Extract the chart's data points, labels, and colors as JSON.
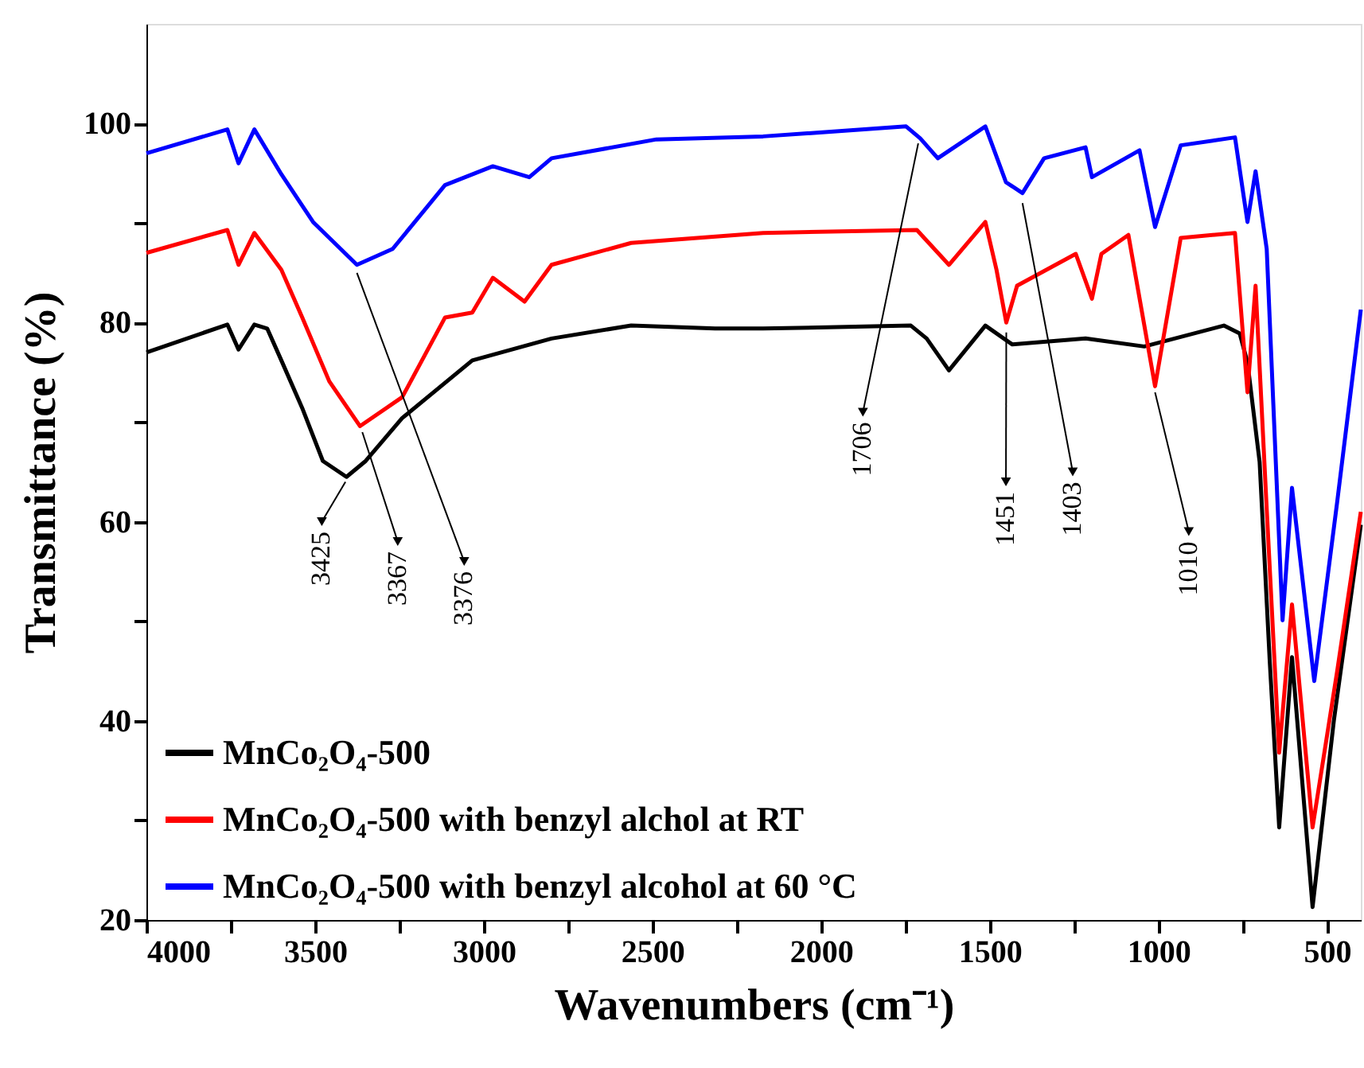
{
  "chart_data": {
    "type": "line",
    "xlabel": "Wavenumbers (cm⁻¹)",
    "ylabel": "Transmittance (%)",
    "xlim": [
      4000,
      400
    ],
    "ylim": [
      20,
      110
    ],
    "xticks": [
      4000,
      {
        "value": 3750,
        "label": null
      },
      3500,
      {
        "value": 3250,
        "label": null
      },
      3000,
      {
        "value": 2750,
        "label": null
      },
      2500,
      {
        "value": 2250,
        "label": null
      },
      2000,
      {
        "value": 1750,
        "label": null
      },
      1500,
      {
        "value": 1250,
        "label": null
      },
      1000,
      {
        "value": 750,
        "label": null
      },
      500
    ],
    "yticks": [
      20,
      {
        "value": 30,
        "label": null
      },
      40,
      {
        "value": 50,
        "label": null
      },
      60,
      {
        "value": 70,
        "label": null
      },
      80,
      {
        "value": 90,
        "label": null
      },
      100
    ],
    "grid": false,
    "legend": "bottom left",
    "marker": "none",
    "line_style": "solid",
    "series": [
      {
        "name": "MnCo₂O₄-500",
        "color": "#000000",
        "x": [
          4000,
          3760,
          3727,
          3680,
          3642,
          3600,
          3538,
          3477,
          3407,
          3350,
          3242,
          3034,
          2799,
          2563,
          2314,
          2172,
          1734,
          1687,
          1621,
          1513,
          1433,
          1216,
          1042,
          806,
          759,
          736,
          700,
          670,
          642,
          604,
          543,
          480,
          400
        ],
        "values": [
          77,
          79.8,
          77.3,
          79.8,
          79.4,
          76.2,
          71.4,
          66.1,
          64.5,
          66.1,
          70.4,
          76.2,
          78.4,
          79.7,
          79.4,
          79.4,
          79.7,
          78.4,
          75.2,
          79.7,
          77.8,
          78.4,
          77.6,
          79.7,
          78.9,
          76,
          66,
          46,
          29.3,
          46.4,
          21.3,
          40,
          59.7
        ]
      },
      {
        "name": "MnCo₂O₄-500 with benzyl alchol at RT",
        "color": "#ff0000",
        "x": [
          4000,
          3760,
          3727,
          3680,
          3600,
          3538,
          3458,
          3367,
          3242,
          3115,
          3034,
          2973,
          2879,
          2799,
          2563,
          2172,
          1716,
          1621,
          1513,
          1480,
          1451,
          1419,
          1245,
          1197,
          1169,
          1089,
          1010,
          934,
          773,
          736,
          712,
          680,
          642,
          604,
          543,
          470,
          400
        ],
        "values": [
          87,
          89.3,
          85.8,
          89,
          85.3,
          80.5,
          74.1,
          69.6,
          72.5,
          80.5,
          81,
          84.5,
          82.1,
          85.8,
          88,
          89,
          89.3,
          85.8,
          90.1,
          85.3,
          80,
          83.7,
          86.9,
          82.4,
          86.9,
          88.8,
          73.6,
          88.5,
          89,
          73,
          83.7,
          62,
          36.8,
          51.7,
          29.3,
          45,
          61
        ]
      },
      {
        "name": "MnCo₂O₄-500 with benzyl alcohol at 60 °C",
        "color": "#0000ff",
        "x": [
          4000,
          3760,
          3727,
          3680,
          3600,
          3506,
          3376,
          3270,
          3115,
          2973,
          2865,
          2799,
          2488,
          2172,
          1748,
          1706,
          1654,
          1513,
          1452,
          1403,
          1339,
          1216,
          1197,
          1056,
          1010,
          934,
          773,
          736,
          712,
          679,
          632,
          604,
          538,
          470,
          400
        ],
        "values": [
          97,
          99.4,
          96,
          99.4,
          94.9,
          90.1,
          85.8,
          87.4,
          93.8,
          95.7,
          94.6,
          96.5,
          98.4,
          98.7,
          99.7,
          98.5,
          96.5,
          99.7,
          94.1,
          93,
          96.5,
          97.6,
          94.6,
          97.3,
          89.6,
          97.8,
          98.6,
          90.1,
          95.2,
          87.4,
          50.1,
          63.4,
          44,
          62,
          81.3
        ]
      }
    ],
    "annotations": [
      "3425",
      "3367",
      "3376",
      "1706",
      "1451",
      "1403",
      "1010"
    ]
  }
}
